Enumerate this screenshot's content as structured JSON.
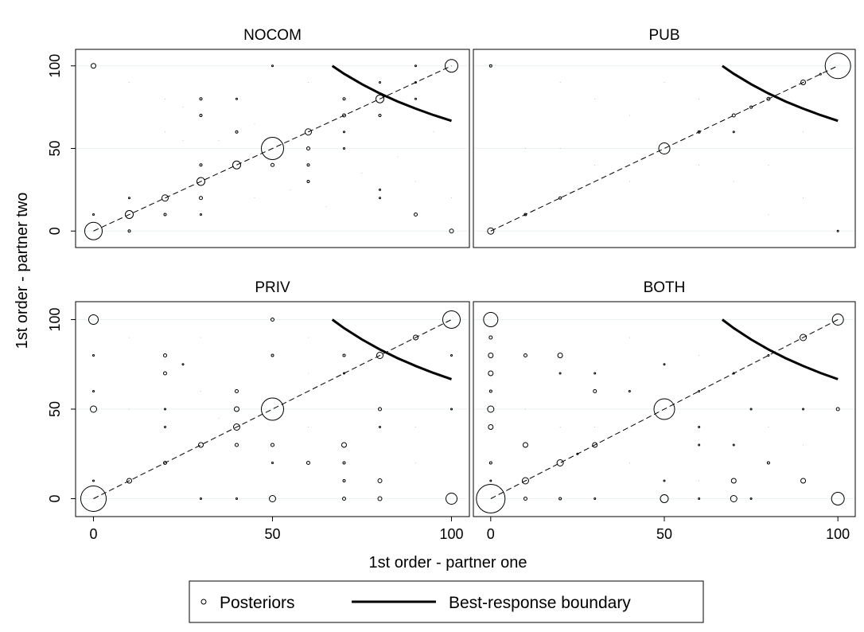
{
  "chart_data": {
    "type": "scatter",
    "xlabel": "1st order - partner one",
    "ylabel": "1st order - partner two",
    "xticks": [
      0,
      50,
      100
    ],
    "yticks": [
      0,
      50,
      100
    ],
    "xlim": [
      -5,
      105
    ],
    "ylim": [
      -10,
      110
    ],
    "legend_position": "bottom-center",
    "legend": [
      "Posteriors",
      "Best-response boundary"
    ],
    "diagonal_reference": true,
    "best_response_boundary": [
      [
        66.7,
        100
      ],
      [
        70,
        95.2
      ],
      [
        75,
        88.9
      ],
      [
        80,
        83.3
      ],
      [
        85,
        78.4
      ],
      [
        90,
        74.1
      ],
      [
        95,
        70.2
      ],
      [
        100,
        66.7
      ]
    ],
    "panels": [
      {
        "title": "NOCOM",
        "points": [
          [
            0,
            0,
            11
          ],
          [
            0,
            10,
            1
          ],
          [
            0,
            100,
            3
          ],
          [
            10,
            10,
            5
          ],
          [
            10,
            20,
            1
          ],
          [
            10,
            0,
            1.5
          ],
          [
            20,
            20,
            4
          ],
          [
            20,
            10,
            1.5
          ],
          [
            30,
            30,
            5
          ],
          [
            30,
            40,
            1.5
          ],
          [
            30,
            20,
            2
          ],
          [
            30,
            10,
            1
          ],
          [
            30,
            70,
            1.5
          ],
          [
            30,
            80,
            1.5
          ],
          [
            40,
            40,
            5
          ],
          [
            40,
            60,
            1.5
          ],
          [
            40,
            80,
            1
          ],
          [
            50,
            50,
            14
          ],
          [
            50,
            40,
            2
          ],
          [
            50,
            100,
            1
          ],
          [
            60,
            60,
            4
          ],
          [
            60,
            50,
            2
          ],
          [
            60,
            40,
            1.5
          ],
          [
            60,
            30,
            1.5
          ],
          [
            70,
            70,
            2
          ],
          [
            70,
            80,
            1.5
          ],
          [
            70,
            60,
            1
          ],
          [
            70,
            50,
            1
          ],
          [
            80,
            80,
            5
          ],
          [
            80,
            70,
            1.5
          ],
          [
            80,
            90,
            1
          ],
          [
            80,
            25,
            1
          ],
          [
            80,
            20,
            1
          ],
          [
            90,
            90,
            1
          ],
          [
            90,
            80,
            1
          ],
          [
            90,
            100,
            1
          ],
          [
            90,
            10,
            2
          ],
          [
            100,
            100,
            8
          ],
          [
            100,
            0,
            2.5
          ],
          [
            25,
            75,
            0.3
          ],
          [
            25,
            55,
            0.3
          ],
          [
            45,
            65,
            0.3
          ],
          [
            55,
            25,
            0.3
          ],
          [
            35,
            55,
            0.3
          ],
          [
            75,
            35,
            0.3
          ],
          [
            85,
            45,
            0.3
          ],
          [
            65,
            15,
            0.3
          ],
          [
            95,
            60,
            0.3
          ],
          [
            60,
            90,
            0.3
          ],
          [
            20,
            80,
            0.3
          ],
          [
            20,
            60,
            0.3
          ],
          [
            45,
            20,
            0.3
          ],
          [
            90,
            30,
            0.3
          ],
          [
            10,
            90,
            0.3
          ],
          [
            100,
            20,
            0.3
          ]
        ]
      },
      {
        "title": "PUB",
        "points": [
          [
            0,
            0,
            4
          ],
          [
            0,
            100,
            1.5
          ],
          [
            10,
            10,
            1.5
          ],
          [
            20,
            20,
            1.5
          ],
          [
            50,
            50,
            7
          ],
          [
            60,
            60,
            1.5
          ],
          [
            70,
            70,
            2
          ],
          [
            70,
            60,
            1
          ],
          [
            75,
            75,
            1.5
          ],
          [
            80,
            80,
            2
          ],
          [
            90,
            90,
            3
          ],
          [
            95,
            95,
            1
          ],
          [
            100,
            100,
            16
          ],
          [
            100,
            0,
            1
          ],
          [
            20,
            90,
            0.3
          ],
          [
            30,
            80,
            0.3
          ],
          [
            40,
            70,
            0.3
          ],
          [
            20,
            50,
            0.3
          ],
          [
            30,
            40,
            0.3
          ],
          [
            40,
            30,
            0.3
          ],
          [
            60,
            80,
            0.3
          ],
          [
            60,
            40,
            0.3
          ],
          [
            80,
            40,
            0.3
          ],
          [
            90,
            20,
            0.3
          ],
          [
            80,
            10,
            0.3
          ],
          [
            10,
            50,
            0.3
          ],
          [
            50,
            90,
            0.3
          ],
          [
            70,
            30,
            0.3
          ],
          [
            90,
            60,
            0.3
          ]
        ]
      },
      {
        "title": "PRIV",
        "points": [
          [
            0,
            0,
            16
          ],
          [
            0,
            50,
            4
          ],
          [
            0,
            100,
            6
          ],
          [
            0,
            10,
            1
          ],
          [
            0,
            60,
            1
          ],
          [
            0,
            80,
            1
          ],
          [
            10,
            10,
            3
          ],
          [
            20,
            20,
            2
          ],
          [
            20,
            40,
            1
          ],
          [
            20,
            50,
            1
          ],
          [
            20,
            70,
            2
          ],
          [
            20,
            80,
            2
          ],
          [
            25,
            75,
            1
          ],
          [
            30,
            30,
            3
          ],
          [
            30,
            0,
            1
          ],
          [
            40,
            40,
            4
          ],
          [
            40,
            30,
            2
          ],
          [
            40,
            50,
            3
          ],
          [
            40,
            60,
            2
          ],
          [
            40,
            0,
            1
          ],
          [
            50,
            50,
            14
          ],
          [
            50,
            0,
            4
          ],
          [
            50,
            30,
            2
          ],
          [
            50,
            20,
            1
          ],
          [
            50,
            80,
            1.5
          ],
          [
            50,
            100,
            2
          ],
          [
            60,
            20,
            2
          ],
          [
            70,
            70,
            1
          ],
          [
            70,
            80,
            1.5
          ],
          [
            70,
            30,
            3
          ],
          [
            70,
            20,
            1.5
          ],
          [
            70,
            10,
            1.5
          ],
          [
            70,
            0,
            2
          ],
          [
            80,
            80,
            4
          ],
          [
            80,
            50,
            2
          ],
          [
            80,
            40,
            1
          ],
          [
            80,
            10,
            2.5
          ],
          [
            80,
            0,
            2.5
          ],
          [
            90,
            90,
            3
          ],
          [
            100,
            100,
            11
          ],
          [
            100,
            80,
            1
          ],
          [
            100,
            50,
            1
          ],
          [
            100,
            0,
            7
          ],
          [
            10,
            50,
            0.3
          ],
          [
            10,
            90,
            0.3
          ],
          [
            30,
            60,
            0.3
          ],
          [
            60,
            40,
            0.3
          ],
          [
            60,
            70,
            0.3
          ],
          [
            90,
            40,
            0.3
          ],
          [
            90,
            20,
            0.3
          ],
          [
            30,
            90,
            0.3
          ],
          [
            60,
            90,
            0.3
          ],
          [
            35,
            45,
            0.3
          ]
        ]
      },
      {
        "title": "BOTH",
        "points": [
          [
            0,
            0,
            18
          ],
          [
            0,
            100,
            9
          ],
          [
            0,
            10,
            1
          ],
          [
            0,
            20,
            1.5
          ],
          [
            0,
            40,
            3
          ],
          [
            0,
            50,
            4
          ],
          [
            0,
            60,
            1.5
          ],
          [
            0,
            70,
            3
          ],
          [
            0,
            80,
            3
          ],
          [
            0,
            90,
            2
          ],
          [
            10,
            10,
            4
          ],
          [
            10,
            0,
            2
          ],
          [
            10,
            30,
            3
          ],
          [
            10,
            80,
            2
          ],
          [
            20,
            20,
            4
          ],
          [
            20,
            70,
            1
          ],
          [
            20,
            80,
            3
          ],
          [
            20,
            0,
            1.5
          ],
          [
            25,
            25,
            1
          ],
          [
            30,
            30,
            3
          ],
          [
            30,
            60,
            2
          ],
          [
            30,
            70,
            1
          ],
          [
            30,
            0,
            1
          ],
          [
            40,
            60,
            1
          ],
          [
            50,
            50,
            13
          ],
          [
            50,
            0,
            5
          ],
          [
            50,
            10,
            1
          ],
          [
            50,
            75,
            1
          ],
          [
            60,
            60,
            1
          ],
          [
            60,
            40,
            1
          ],
          [
            60,
            30,
            1
          ],
          [
            60,
            0,
            1
          ],
          [
            70,
            70,
            1
          ],
          [
            70,
            30,
            1
          ],
          [
            70,
            10,
            3
          ],
          [
            70,
            0,
            4
          ],
          [
            75,
            50,
            1
          ],
          [
            75,
            0,
            1
          ],
          [
            80,
            80,
            1
          ],
          [
            80,
            20,
            1.5
          ],
          [
            90,
            90,
            4
          ],
          [
            90,
            10,
            3
          ],
          [
            90,
            50,
            1
          ],
          [
            100,
            100,
            7
          ],
          [
            100,
            50,
            2
          ],
          [
            100,
            0,
            8
          ],
          [
            10,
            50,
            0.3
          ],
          [
            40,
            90,
            0.3
          ],
          [
            60,
            80,
            0.3
          ],
          [
            30,
            40,
            0.3
          ],
          [
            80,
            40,
            0.3
          ],
          [
            90,
            30,
            0.3
          ],
          [
            40,
            20,
            0.3
          ],
          [
            20,
            40,
            0.3
          ],
          [
            60,
            10,
            0.3
          ]
        ]
      }
    ]
  }
}
